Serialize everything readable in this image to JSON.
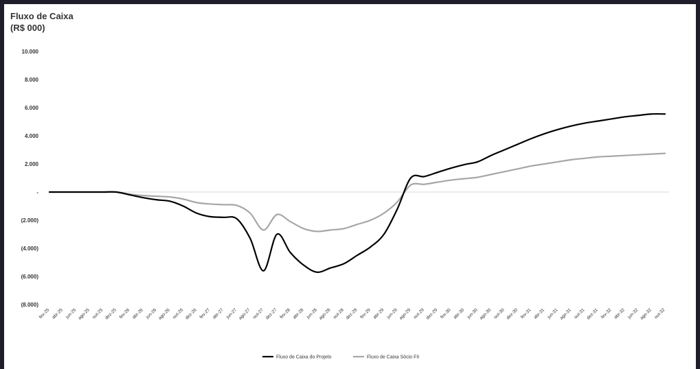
{
  "chart_data": {
    "type": "line",
    "title_line1": "Fluxo de Caixa",
    "title_line2": "(R$ 000)",
    "y_ticks": [
      {
        "value": 10000,
        "label": "10.000"
      },
      {
        "value": 8000,
        "label": "8.000"
      },
      {
        "value": 6000,
        "label": "6.000"
      },
      {
        "value": 4000,
        "label": "4.000"
      },
      {
        "value": 2000,
        "label": "2.000"
      },
      {
        "value": 0,
        "label": "-"
      },
      {
        "value": -2000,
        "label": "(2.000)"
      },
      {
        "value": -4000,
        "label": "(4.000)"
      },
      {
        "value": -6000,
        "label": "(6.000)"
      },
      {
        "value": -8000,
        "label": "(8.000)"
      }
    ],
    "ylim": [
      -8000,
      10000
    ],
    "x": [
      "fev-25",
      "abr-25",
      "jun-25",
      "ago-25",
      "out-25",
      "dez-25",
      "fev-26",
      "abr-26",
      "jun-26",
      "ago-26",
      "out-26",
      "dez-26",
      "fev-27",
      "abr-27",
      "jun-27",
      "ago-27",
      "out-27",
      "dez-27",
      "fev-28",
      "abr-28",
      "jun-28",
      "ago-28",
      "out-28",
      "dez-28",
      "fev-29",
      "abr-29",
      "jun-29",
      "ago-29",
      "out-29",
      "dez-29",
      "fev-30",
      "abr-30",
      "jun-30",
      "ago-30",
      "out-30",
      "dez-30",
      "fev-31",
      "abr-31",
      "jun-31",
      "ago-31",
      "out-31",
      "dez-31",
      "fev-32",
      "abr-32",
      "jun-32",
      "ago-32",
      "out-32"
    ],
    "series": [
      {
        "name": "Fluxo de Caixa do Projeto",
        "color": "#000000",
        "values": [
          0,
          0,
          0,
          0,
          0,
          0,
          -200,
          -400,
          -550,
          -650,
          -1000,
          -1500,
          -1750,
          -1800,
          -1900,
          -3300,
          -5600,
          -3000,
          -4300,
          -5200,
          -5700,
          -5400,
          -5100,
          -4500,
          -3900,
          -3000,
          -1200,
          1000,
          1100,
          1400,
          1700,
          1950,
          2150,
          2600,
          3000,
          3400,
          3800,
          4150,
          4450,
          4700,
          4900,
          5050,
          5200,
          5350,
          5450,
          5550,
          5550
        ]
      },
      {
        "name": "Fluxo de Caixa Sócio FII",
        "color": "#a6a6a6",
        "values": [
          0,
          0,
          0,
          0,
          0,
          0,
          -150,
          -250,
          -300,
          -350,
          -500,
          -750,
          -850,
          -900,
          -950,
          -1500,
          -2700,
          -1600,
          -2100,
          -2600,
          -2800,
          -2700,
          -2600,
          -2300,
          -2000,
          -1500,
          -700,
          500,
          550,
          700,
          850,
          950,
          1050,
          1250,
          1450,
          1650,
          1850,
          2000,
          2150,
          2300,
          2400,
          2500,
          2550,
          2600,
          2650,
          2700,
          2750
        ]
      }
    ],
    "grid": false,
    "legend_position": "bottom"
  }
}
